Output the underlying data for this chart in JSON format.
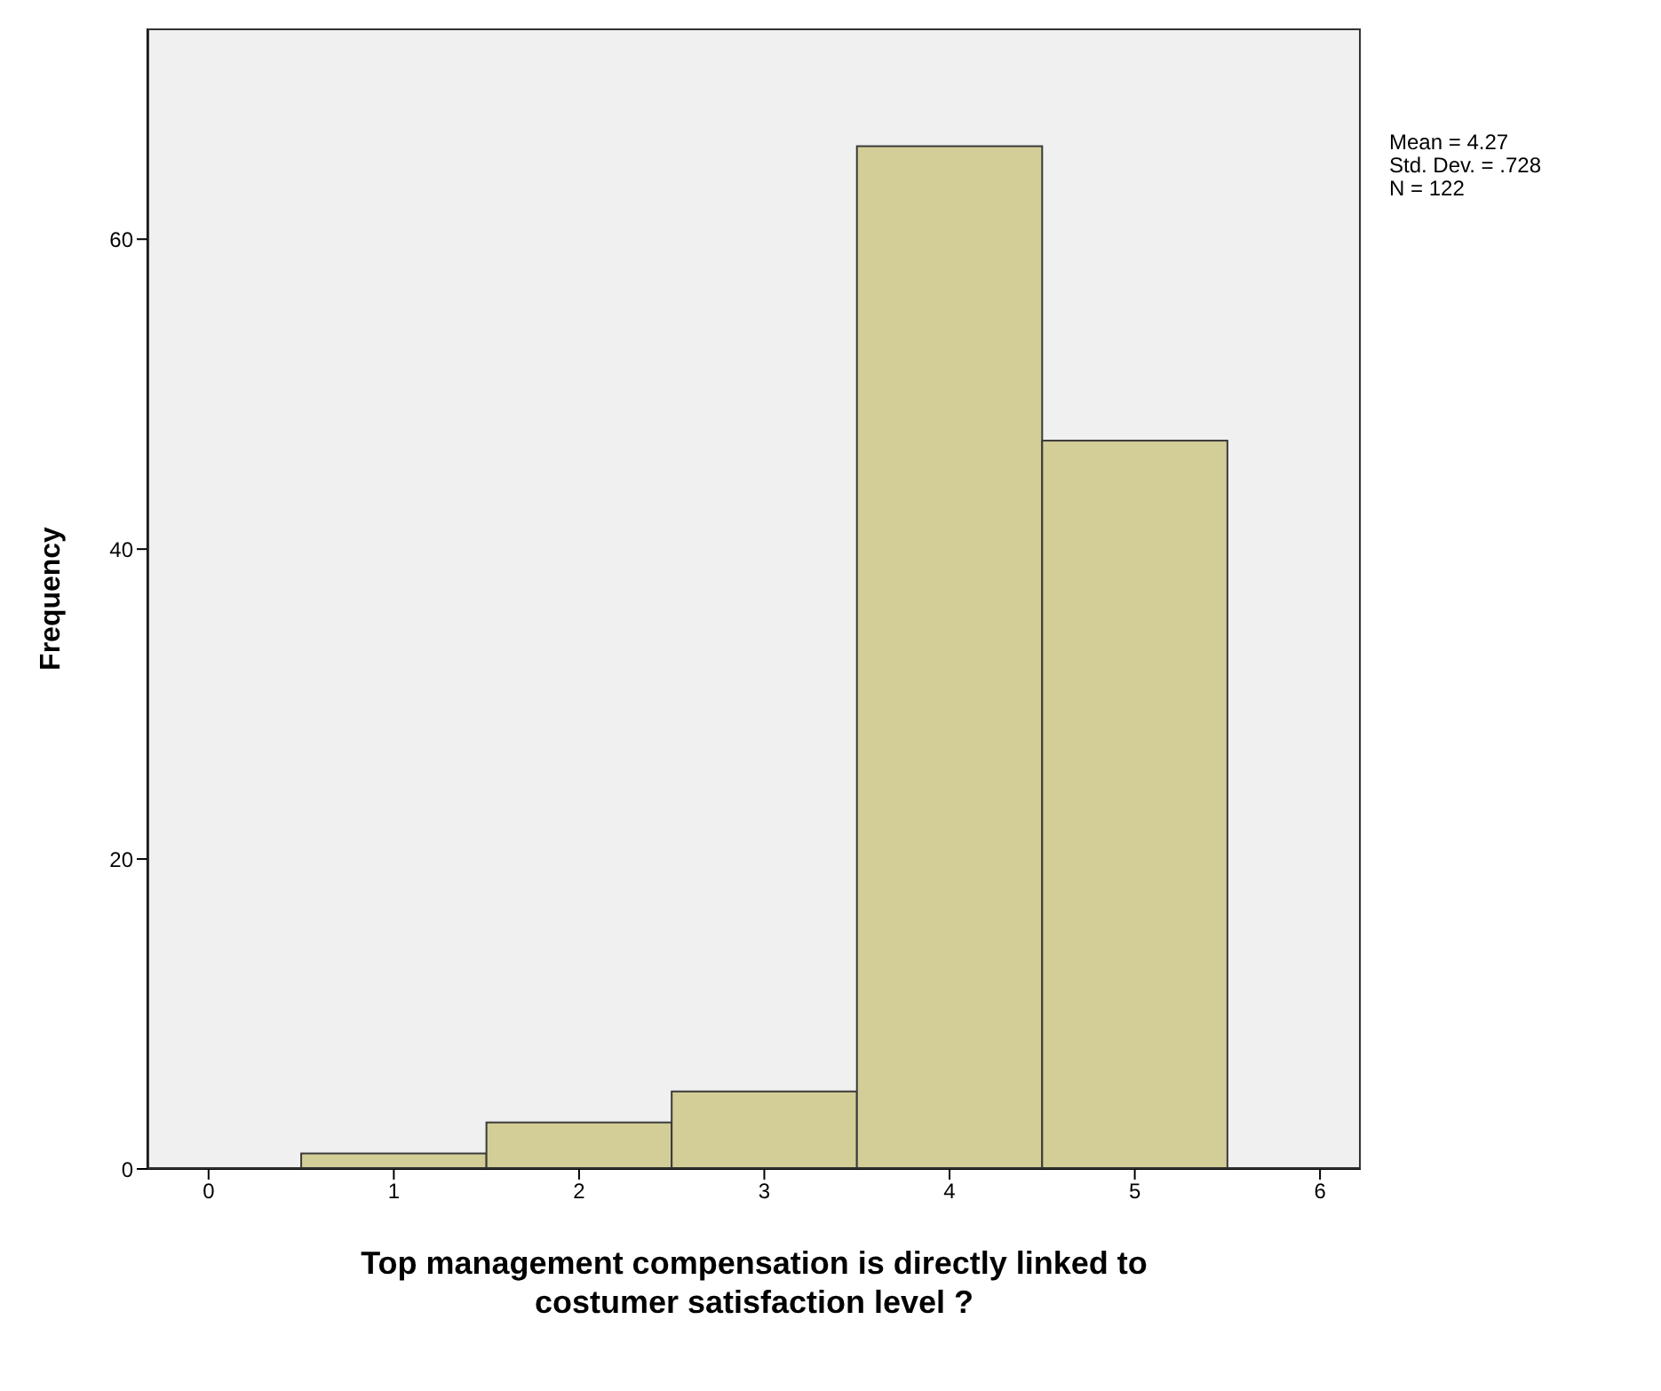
{
  "chart_data": {
    "type": "histogram",
    "bins": [
      0.5,
      1.5,
      2.5,
      3.5,
      4.5,
      5.5
    ],
    "values": [
      1,
      3,
      5,
      66,
      47
    ],
    "color": "#d3ce97",
    "xlim": [
      -0.33,
      6.22
    ],
    "xticks": [
      0,
      1,
      2,
      3,
      4,
      5,
      6
    ],
    "ylim": [
      0,
      73.6
    ],
    "yticks": [
      0,
      20,
      40,
      60
    ],
    "xlabel": "Top management compensation is directly linked to costumer satisfaction level  ?",
    "ylabel": "Frequency",
    "annotations": [
      "Mean = 4.27",
      "Std. Dev. = .728",
      "N = 122"
    ],
    "grid": false
  }
}
